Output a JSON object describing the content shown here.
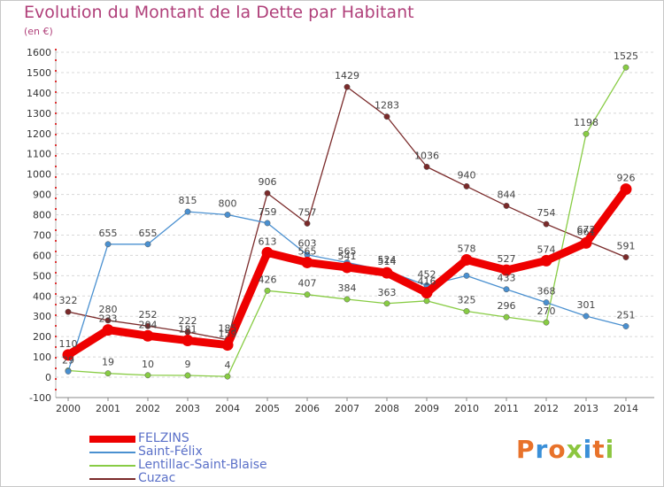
{
  "title": "Evolution du Montant de la Dette par Habitant",
  "subtitle": "(en €)",
  "brand": {
    "text": "Proxiti",
    "colors": [
      "#e8722a",
      "#3a8fd8",
      "#e8722a",
      "#8cc63f",
      "#3a8fd8",
      "#e8722a",
      "#8cc63f"
    ]
  },
  "chart_data": {
    "type": "line",
    "x": [
      "2000",
      "2001",
      "2002",
      "2003",
      "2004",
      "2005",
      "2006",
      "2007",
      "2008",
      "2009",
      "2010",
      "2011",
      "2012",
      "2013",
      "2014"
    ],
    "ylim": [
      -100,
      1600
    ],
    "yticks": [
      "-100",
      "0",
      "100",
      "200",
      "300",
      "400",
      "500",
      "600",
      "700",
      "800",
      "900",
      "1000",
      "1100",
      "1200",
      "1300",
      "1400",
      "1500",
      "1600"
    ],
    "grid": "horizontal dashed",
    "legend_position": "bottom-left",
    "series": [
      {
        "name": "FELZINS",
        "color": "#ee0000",
        "values": [
          110,
          233,
          204,
          181,
          159,
          613,
          565,
          541,
          514,
          416,
          578,
          527,
          574,
          661,
          926
        ],
        "labels": [
          "110",
          "233",
          "204",
          "181",
          "159",
          "613",
          "565",
          "541",
          "514",
          "416",
          "578",
          "527",
          "574",
          "661",
          "926"
        ]
      },
      {
        "name": "Saint-Félix",
        "color": "#4a90d0",
        "values": [
          29,
          655,
          655,
          815,
          800,
          759,
          603,
          565,
          524,
          452,
          500,
          433,
          368,
          301,
          251
        ],
        "labels": [
          "29",
          "655",
          "655",
          "815",
          "800",
          "759",
          "603",
          "565",
          "524",
          "452",
          "",
          "433",
          "368",
          "301",
          "251"
        ]
      },
      {
        "name": "Lentillac-Saint-Blaise",
        "color": "#88cc44",
        "values": [
          33,
          19,
          10,
          9,
          4,
          426,
          407,
          384,
          363,
          376,
          325,
          296,
          270,
          1198,
          1525
        ],
        "labels": [
          "",
          "19",
          "10",
          "9",
          "4",
          "426",
          "407",
          "384",
          "363",
          "",
          "325",
          "296",
          "270",
          "1198",
          "1525"
        ]
      },
      {
        "name": "Cuzac",
        "color": "#7a2a2a",
        "values": [
          322,
          280,
          252,
          222,
          185,
          906,
          757,
          1429,
          1283,
          1036,
          940,
          844,
          754,
          672,
          591
        ],
        "labels": [
          "322",
          "280",
          "252",
          "222",
          "185",
          "906",
          "757",
          "1429",
          "1283",
          "1036",
          "940",
          "844",
          "754",
          "672",
          "591"
        ]
      }
    ]
  }
}
